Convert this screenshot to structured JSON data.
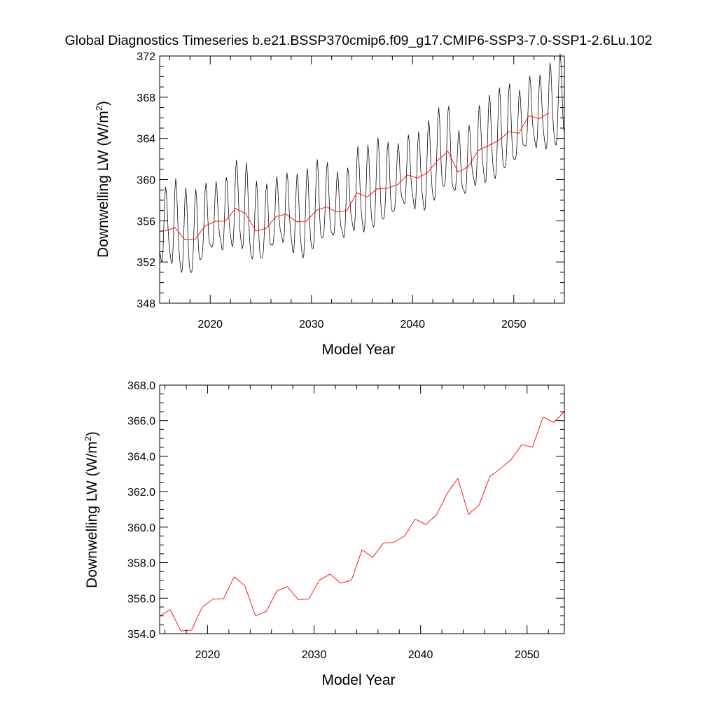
{
  "title": "Global Diagnostics Timeseries b.e21.BSSP370cmip6.f09_g17.CMIP6-SSP3-7.0-SSP1-2.6Lu.102",
  "chart_data": [
    {
      "type": "line",
      "xlabel": "Model Year",
      "ylabel": "Downwelling LW (W/m",
      "ylabel_sup": "2",
      "ylabel_close": ")",
      "xlim": [
        2015,
        2055
      ],
      "ylim": [
        348,
        372
      ],
      "xticks": [
        2020,
        2030,
        2040,
        2050
      ],
      "yticks": [
        348,
        352,
        356,
        360,
        364,
        368,
        372
      ],
      "ytick_labels": [
        "348",
        "352",
        "356",
        "360",
        "364",
        "368",
        "372"
      ],
      "grid": false,
      "series": [
        {
          "kind": "monthly",
          "color": "#000000",
          "amplitude_reference": "annual_mean",
          "seasonal_amplitude": 3.6,
          "start": 2015.0,
          "end": 2055.0
        },
        {
          "kind": "annual_mean",
          "color": "#ff0000",
          "x": [
            2015.5,
            2016.5,
            2017.5,
            2018.5,
            2019.5,
            2020.5,
            2021.5,
            2022.5,
            2023.5,
            2024.5,
            2025.5,
            2026.5,
            2027.5,
            2028.5,
            2029.5,
            2030.5,
            2031.5,
            2032.5,
            2033.5,
            2034.5,
            2035.5,
            2036.5,
            2037.5,
            2038.5,
            2039.5,
            2040.5,
            2041.5,
            2042.5,
            2043.5,
            2044.5,
            2045.5,
            2046.5,
            2047.5,
            2048.5,
            2049.5,
            2050.5,
            2051.5,
            2052.5,
            2053.5
          ],
          "values": [
            355.0,
            355.35,
            354.15,
            354.2,
            355.5,
            355.95,
            355.97,
            357.2,
            356.7,
            355.0,
            355.25,
            356.4,
            356.65,
            355.92,
            355.95,
            357.02,
            357.35,
            356.85,
            357.0,
            358.72,
            358.3,
            359.1,
            359.15,
            359.5,
            360.45,
            360.15,
            360.7,
            361.9,
            362.75,
            360.72,
            361.25,
            362.85,
            363.3,
            363.8,
            364.65,
            364.5,
            366.2,
            365.9,
            366.5
          ]
        }
      ]
    },
    {
      "type": "line",
      "xlabel": "Model Year",
      "ylabel": "Downwelling LW (W/m",
      "ylabel_sup": "2",
      "ylabel_close": ")",
      "xlim": [
        2015.5,
        2053.5
      ],
      "ylim": [
        354,
        368
      ],
      "xticks": [
        2020,
        2030,
        2040,
        2050
      ],
      "yticks": [
        354,
        356,
        358,
        360,
        362,
        364,
        366,
        368
      ],
      "ytick_labels": [
        "354.0",
        "356.0",
        "358.0",
        "360.0",
        "362.0",
        "364.0",
        "366.0",
        "368.0"
      ],
      "grid": false,
      "series": [
        {
          "kind": "annual_mean",
          "color": "#ff0000",
          "ref": 0
        }
      ]
    }
  ]
}
